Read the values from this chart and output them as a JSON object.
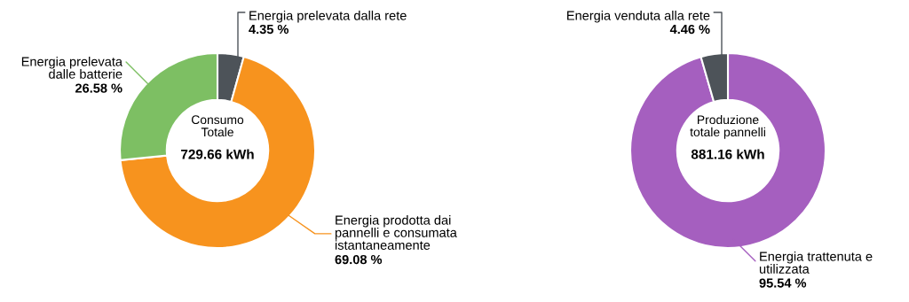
{
  "chart_data": [
    {
      "type": "donut",
      "title": "Consumo\nTotale",
      "annotations": [
        "729.66 kWh"
      ],
      "categories": [
        "Energia prelevata dalla rete",
        "Energia prodotta dai\npannelli e consumata\nistantaneamente",
        "Energia prelevata\ndalle batterie"
      ],
      "values": [
        4.35,
        69.08,
        26.58
      ],
      "colors": [
        "#4d5359",
        "#f7931e",
        "#7dbf63"
      ],
      "value_labels": [
        "4.35 %",
        "69.08 %",
        "26.58 %"
      ],
      "legend": false
    },
    {
      "type": "donut",
      "title": "Produzione\ntotale pannelli",
      "annotations": [
        "881.16 kWh"
      ],
      "categories": [
        "Energia trattenuta e\nutilizzata",
        "Energia venduta alla rete"
      ],
      "values": [
        95.54,
        4.46
      ],
      "colors": [
        "#a55fbf",
        "#4d5359"
      ],
      "value_labels": [
        "95.54 %",
        "4.46 %"
      ],
      "legend": false
    }
  ]
}
